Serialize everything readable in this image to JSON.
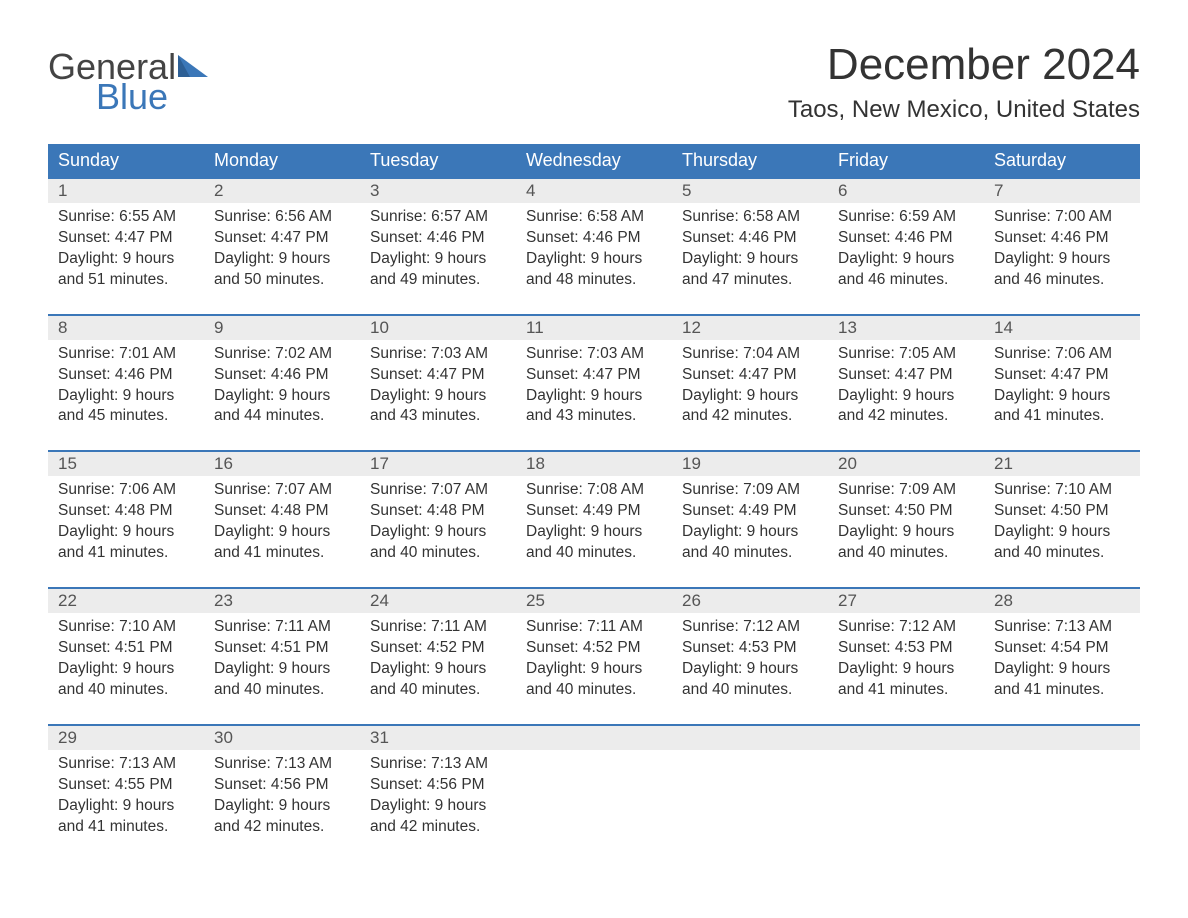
{
  "logo": {
    "word1": "General",
    "word2": "Blue"
  },
  "title": "December 2024",
  "location": "Taos, New Mexico, United States",
  "colors": {
    "header_bg": "#3b77b8",
    "header_text": "#ffffff",
    "daynum_bg": "#ececec",
    "daynum_border": "#3b77b8",
    "body_text": "#333333",
    "logo_blue": "#3b77b8"
  },
  "weekday_labels": [
    "Sunday",
    "Monday",
    "Tuesday",
    "Wednesday",
    "Thursday",
    "Friday",
    "Saturday"
  ],
  "weeks": [
    [
      {
        "num": "1",
        "sunrise": "6:55 AM",
        "sunset": "4:47 PM",
        "daylight": "9 hours and 51 minutes."
      },
      {
        "num": "2",
        "sunrise": "6:56 AM",
        "sunset": "4:47 PM",
        "daylight": "9 hours and 50 minutes."
      },
      {
        "num": "3",
        "sunrise": "6:57 AM",
        "sunset": "4:46 PM",
        "daylight": "9 hours and 49 minutes."
      },
      {
        "num": "4",
        "sunrise": "6:58 AM",
        "sunset": "4:46 PM",
        "daylight": "9 hours and 48 minutes."
      },
      {
        "num": "5",
        "sunrise": "6:58 AM",
        "sunset": "4:46 PM",
        "daylight": "9 hours and 47 minutes."
      },
      {
        "num": "6",
        "sunrise": "6:59 AM",
        "sunset": "4:46 PM",
        "daylight": "9 hours and 46 minutes."
      },
      {
        "num": "7",
        "sunrise": "7:00 AM",
        "sunset": "4:46 PM",
        "daylight": "9 hours and 46 minutes."
      }
    ],
    [
      {
        "num": "8",
        "sunrise": "7:01 AM",
        "sunset": "4:46 PM",
        "daylight": "9 hours and 45 minutes."
      },
      {
        "num": "9",
        "sunrise": "7:02 AM",
        "sunset": "4:46 PM",
        "daylight": "9 hours and 44 minutes."
      },
      {
        "num": "10",
        "sunrise": "7:03 AM",
        "sunset": "4:47 PM",
        "daylight": "9 hours and 43 minutes."
      },
      {
        "num": "11",
        "sunrise": "7:03 AM",
        "sunset": "4:47 PM",
        "daylight": "9 hours and 43 minutes."
      },
      {
        "num": "12",
        "sunrise": "7:04 AM",
        "sunset": "4:47 PM",
        "daylight": "9 hours and 42 minutes."
      },
      {
        "num": "13",
        "sunrise": "7:05 AM",
        "sunset": "4:47 PM",
        "daylight": "9 hours and 42 minutes."
      },
      {
        "num": "14",
        "sunrise": "7:06 AM",
        "sunset": "4:47 PM",
        "daylight": "9 hours and 41 minutes."
      }
    ],
    [
      {
        "num": "15",
        "sunrise": "7:06 AM",
        "sunset": "4:48 PM",
        "daylight": "9 hours and 41 minutes."
      },
      {
        "num": "16",
        "sunrise": "7:07 AM",
        "sunset": "4:48 PM",
        "daylight": "9 hours and 41 minutes."
      },
      {
        "num": "17",
        "sunrise": "7:07 AM",
        "sunset": "4:48 PM",
        "daylight": "9 hours and 40 minutes."
      },
      {
        "num": "18",
        "sunrise": "7:08 AM",
        "sunset": "4:49 PM",
        "daylight": "9 hours and 40 minutes."
      },
      {
        "num": "19",
        "sunrise": "7:09 AM",
        "sunset": "4:49 PM",
        "daylight": "9 hours and 40 minutes."
      },
      {
        "num": "20",
        "sunrise": "7:09 AM",
        "sunset": "4:50 PM",
        "daylight": "9 hours and 40 minutes."
      },
      {
        "num": "21",
        "sunrise": "7:10 AM",
        "sunset": "4:50 PM",
        "daylight": "9 hours and 40 minutes."
      }
    ],
    [
      {
        "num": "22",
        "sunrise": "7:10 AM",
        "sunset": "4:51 PM",
        "daylight": "9 hours and 40 minutes."
      },
      {
        "num": "23",
        "sunrise": "7:11 AM",
        "sunset": "4:51 PM",
        "daylight": "9 hours and 40 minutes."
      },
      {
        "num": "24",
        "sunrise": "7:11 AM",
        "sunset": "4:52 PM",
        "daylight": "9 hours and 40 minutes."
      },
      {
        "num": "25",
        "sunrise": "7:11 AM",
        "sunset": "4:52 PM",
        "daylight": "9 hours and 40 minutes."
      },
      {
        "num": "26",
        "sunrise": "7:12 AM",
        "sunset": "4:53 PM",
        "daylight": "9 hours and 40 minutes."
      },
      {
        "num": "27",
        "sunrise": "7:12 AM",
        "sunset": "4:53 PM",
        "daylight": "9 hours and 41 minutes."
      },
      {
        "num": "28",
        "sunrise": "7:13 AM",
        "sunset": "4:54 PM",
        "daylight": "9 hours and 41 minutes."
      }
    ],
    [
      {
        "num": "29",
        "sunrise": "7:13 AM",
        "sunset": "4:55 PM",
        "daylight": "9 hours and 41 minutes."
      },
      {
        "num": "30",
        "sunrise": "7:13 AM",
        "sunset": "4:56 PM",
        "daylight": "9 hours and 42 minutes."
      },
      {
        "num": "31",
        "sunrise": "7:13 AM",
        "sunset": "4:56 PM",
        "daylight": "9 hours and 42 minutes."
      },
      null,
      null,
      null,
      null
    ]
  ],
  "labels": {
    "sunrise_prefix": "Sunrise: ",
    "sunset_prefix": "Sunset: ",
    "daylight_prefix": "Daylight: "
  }
}
